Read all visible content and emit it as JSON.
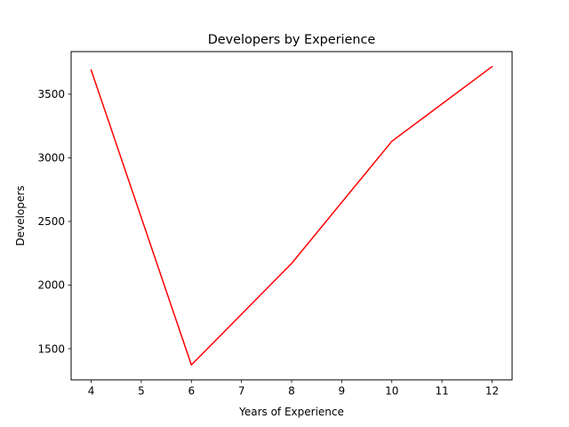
{
  "chart_data": {
    "type": "line",
    "title": "Developers by Experience",
    "xlabel": "Years of Experience",
    "ylabel": "Developers",
    "xlim": [
      3.6,
      12.4
    ],
    "ylim": [
      1255,
      3835
    ],
    "x_ticks": [
      4,
      5,
      6,
      7,
      8,
      9,
      10,
      11,
      12
    ],
    "y_ticks": [
      1500,
      2000,
      2500,
      3000,
      3500
    ],
    "grid": false,
    "series": [
      {
        "color": "#ff0000",
        "x": [
          4,
          6,
          8,
          10,
          12
        ],
        "y": [
          3690,
          1372,
          2170,
          3130,
          3717
        ]
      }
    ]
  }
}
